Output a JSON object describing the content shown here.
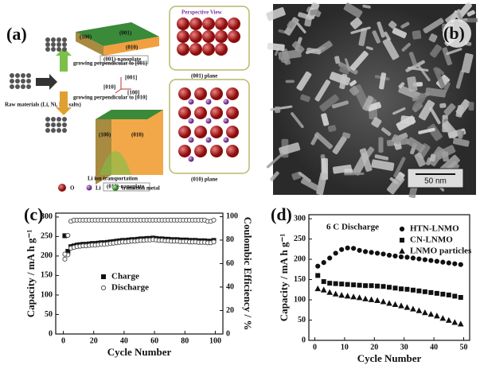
{
  "panels": {
    "a": {
      "label": "(a)",
      "perspective": "Perspective View",
      "plate_001_top": "(001)",
      "plate_001_side": "(100)",
      "plate_001_front": "(010)",
      "plate_001_name": "(001)-nanoplate",
      "grow_001": "growing perpendicular to [001]",
      "raw": "Raw materials (Li, Ni, Mn salts)",
      "grow_010": "growing perpendicular to [010]",
      "axis_c": "[001]",
      "axis_b": "[010]",
      "axis_a": "[100]",
      "plane_001": "(001) plane",
      "plate_010_side": "(100)",
      "plate_010_front": "(010)",
      "li_transport": "Li ion transportation",
      "plate_010_name": "(010)-nanoplate",
      "plane_010": "(010) plane",
      "legend_o": "O",
      "legend_li": "Li",
      "legend_tm": "transition metal"
    },
    "b": {
      "label": "(b)",
      "scale_bar": "50 nm"
    }
  },
  "chart_data": [
    {
      "type": "scatter",
      "panel_label": "(c)",
      "x_label": "Cycle Number",
      "y_label": "Capacity / mA h g⁻¹",
      "y2_label": "Coulombic Efficiency / %",
      "xlim": [
        -5,
        105
      ],
      "xticks": [
        0,
        20,
        40,
        60,
        80,
        100
      ],
      "ylim": [
        0,
        310
      ],
      "yticks": [
        0,
        50,
        100,
        150,
        200,
        250,
        300
      ],
      "y2lim": [
        0,
        103
      ],
      "y2ticks": [
        0,
        20,
        40,
        60,
        80,
        100
      ],
      "legend": "center",
      "x": [
        1,
        3,
        5,
        7,
        9,
        11,
        13,
        15,
        17,
        19,
        21,
        23,
        25,
        27,
        29,
        31,
        33,
        35,
        37,
        39,
        41,
        43,
        45,
        47,
        49,
        51,
        53,
        55,
        57,
        59,
        61,
        63,
        65,
        67,
        69,
        71,
        73,
        75,
        77,
        79,
        81,
        83,
        85,
        87,
        89,
        91,
        93,
        95,
        97,
        99
      ],
      "series": [
        {
          "name": "Charge",
          "color": "#111111",
          "marker": "square",
          "filled": true,
          "values": [
            252,
            212,
            224,
            226,
            228,
            229,
            230,
            230,
            231,
            232,
            232,
            233,
            234,
            234,
            235,
            236,
            237,
            238,
            239,
            240,
            240,
            241,
            242,
            242,
            243,
            244,
            244,
            245,
            245,
            246,
            245,
            244,
            244,
            243,
            243,
            242,
            242,
            242,
            241,
            241,
            241,
            240,
            240,
            240,
            239,
            239,
            239,
            238,
            238,
            240
          ]
        },
        {
          "name": "Discharge",
          "color": "#555555",
          "marker": "circle",
          "filled": false,
          "values": [
            192,
            203,
            220,
            222,
            224,
            225,
            226,
            226,
            227,
            228,
            228,
            229,
            230,
            230,
            231,
            232,
            233,
            234,
            235,
            236,
            236,
            237,
            238,
            238,
            239,
            240,
            240,
            241,
            241,
            242,
            241,
            240,
            240,
            239,
            239,
            238,
            238,
            238,
            237,
            237,
            237,
            236,
            236,
            236,
            235,
            235,
            235,
            234,
            234,
            236
          ]
        },
        {
          "color": "#555555",
          "marker": "circle",
          "filled": false,
          "axis": "y2",
          "values": [
            68,
            84,
            96,
            97,
            97,
            97,
            97,
            97,
            97,
            97,
            97,
            97,
            97,
            97,
            97,
            97,
            97,
            97,
            97,
            97,
            97,
            97,
            97,
            97,
            97,
            97,
            97,
            97,
            97,
            97,
            97,
            97,
            97,
            97,
            97,
            97,
            97,
            97,
            97,
            97,
            97,
            97,
            97,
            97,
            97,
            97,
            97,
            96,
            96,
            97
          ]
        }
      ]
    },
    {
      "type": "scatter",
      "panel_label": "(d)",
      "x_label": "Cycle Number",
      "y_label": "Capacity / mA h g⁻¹",
      "annotation": "6 C Discharge",
      "xlim": [
        -2,
        52
      ],
      "xticks": [
        0,
        10,
        20,
        30,
        40,
        50
      ],
      "ylim": [
        0,
        310
      ],
      "yticks": [
        0,
        50,
        100,
        150,
        200,
        250,
        300
      ],
      "legend": "upper right",
      "x": [
        1,
        3,
        5,
        7,
        9,
        11,
        13,
        15,
        17,
        19,
        21,
        23,
        25,
        27,
        29,
        31,
        33,
        35,
        37,
        39,
        41,
        43,
        45,
        47,
        49
      ],
      "series": [
        {
          "name": "HTN-LNMO",
          "color": "#111111",
          "marker": "circle",
          "filled": true,
          "values": [
            183,
            192,
            203,
            215,
            224,
            228,
            227,
            222,
            219,
            217,
            215,
            213,
            210,
            208,
            206,
            205,
            203,
            201,
            199,
            197,
            195,
            193,
            191,
            189,
            187
          ]
        },
        {
          "name": "CN-LNMO",
          "color": "#111111",
          "marker": "square",
          "filled": true,
          "values": [
            160,
            145,
            141,
            140,
            139,
            138,
            137,
            136,
            135,
            135,
            134,
            133,
            131,
            129,
            127,
            126,
            124,
            122,
            120,
            118,
            116,
            114,
            112,
            109,
            106
          ]
        },
        {
          "name": "LNMO particles",
          "color": "#111111",
          "marker": "triangle",
          "filled": true,
          "values": [
            127,
            124,
            118,
            114,
            111,
            109,
            107,
            105,
            102,
            100,
            98,
            95,
            91,
            88,
            85,
            81,
            77,
            73,
            68,
            64,
            60,
            54,
            49,
            44,
            40
          ]
        }
      ]
    }
  ]
}
